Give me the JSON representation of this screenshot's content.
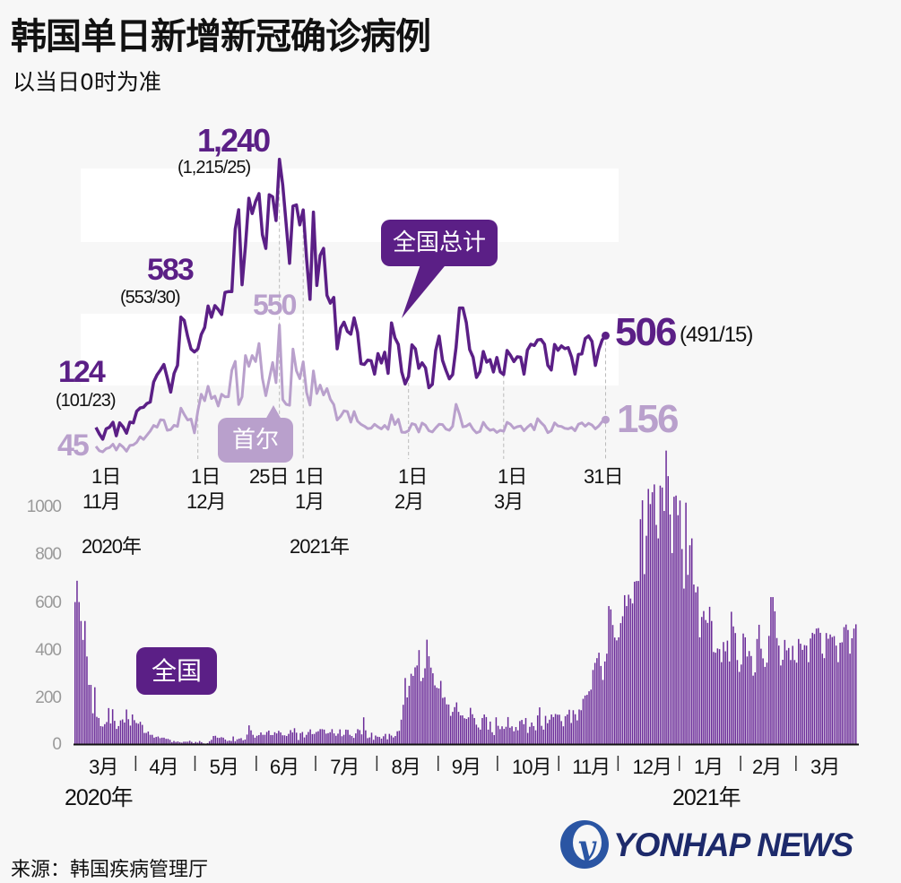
{
  "title": "韩国单日新增新冠确诊病例",
  "subtitle": "以当日0时为准",
  "source": "来源：韩国疾病管理厅",
  "logo_text": "YONHAP NEWS",
  "colors": {
    "national": "#5b1f86",
    "seoul": "#b9a0cc",
    "background": "#f7f7f7"
  },
  "chart_data": [
    {
      "type": "line",
      "x_range": [
        "2020-11-01",
        "2021-03-31"
      ],
      "x_tick_labels": [
        {
          "day": "1日",
          "month": "11月",
          "year": "2020年"
        },
        {
          "day": "1日",
          "month": "12月"
        },
        {
          "day": "25日"
        },
        {
          "day": "1日",
          "month": "1月",
          "year": "2021年"
        },
        {
          "day": "1日",
          "month": "2月"
        },
        {
          "day": "1日",
          "month": "3月"
        },
        {
          "day": "31日"
        }
      ],
      "series": [
        {
          "name": "全国总计",
          "values": [
            124,
            97,
            75,
            118,
            125,
            145,
            89,
            143,
            126,
            100,
            146,
            143,
            191,
            205,
            208,
            223,
            230,
            313,
            343,
            363,
            386,
            330,
            271,
            349,
            382,
            583,
            569,
            503,
            450,
            438,
            451,
            511,
            540,
            629,
            583,
            631,
            615,
            594,
            686,
            689,
            689,
            950,
            1030,
            718,
            880,
            1078,
            1014,
            1064,
            1097,
            926,
            869,
            1092,
            1084,
            985,
            1240,
            1132,
            970,
            807,
            1045,
            1050,
            967,
            1029,
            824,
            657,
            1020,
            715,
            840,
            869,
            674,
            641,
            665,
            451,
            537,
            562,
            524,
            512,
            580,
            520,
            389,
            386,
            404,
            401,
            346,
            431,
            392,
            437,
            349,
            559,
            497,
            469,
            355,
            305,
            336,
            467,
            451,
            370,
            393,
            372,
            289,
            303,
            444,
            504,
            403,
            362,
            326,
            344,
            457,
            621,
            621,
            561,
            448,
            416,
            332,
            356,
            440,
            396,
            406,
            355,
            415,
            355,
            344,
            444,
            424,
            398,
            418,
            416,
            346,
            446,
            470,
            465,
            488,
            490,
            470,
            382,
            363,
            469,
            445,
            463,
            452,
            456,
            416,
            346,
            428,
            430,
            494,
            505,
            482,
            382,
            447,
            488,
            506
          ]
        },
        {
          "name": "首尔",
          "values": [
            45,
            27,
            22,
            36,
            40,
            54,
            30,
            54,
            42,
            25,
            49,
            51,
            62,
            85,
            74,
            91,
            109,
            132,
            125,
            156,
            154,
            112,
            115,
            133,
            128,
            204,
            178,
            155,
            159,
            101,
            193,
            262,
            235,
            295,
            244,
            254,
            213,
            262,
            251,
            252,
            362,
            399,
            219,
            251,
            423,
            378,
            423,
            398,
            473,
            328,
            256,
            325,
            394,
            310,
            550,
            240,
            220,
            216,
            450,
            360,
            327,
            397,
            269,
            217,
            359,
            265,
            300,
            259,
            286,
            241,
            219,
            155,
            170,
            193,
            190,
            146,
            190,
            150,
            137,
            129,
            119,
            121,
            137,
            126,
            118,
            132,
            116,
            176,
            136,
            158,
            104,
            103,
            110,
            140,
            135,
            105,
            142,
            133,
            110,
            105,
            122,
            137,
            136,
            117,
            112,
            129,
            220,
            179,
            126,
            129,
            139,
            116,
            101,
            107,
            145,
            124,
            112,
            116,
            103,
            112,
            108,
            145,
            137,
            120,
            127,
            130,
            110,
            125,
            137,
            114,
            160,
            144,
            130,
            102,
            110,
            143,
            130,
            128,
            120,
            118,
            124,
            110,
            137,
            143,
            129,
            141,
            134,
            118,
            130,
            148,
            156
          ]
        }
      ],
      "annotations": [
        {
          "value": "124",
          "detail": "(101/23)"
        },
        {
          "value": "583",
          "detail": "(553/30)"
        },
        {
          "value": "1,240",
          "detail": "(1,215/25)"
        },
        {
          "value": "506",
          "detail": "(491/15)"
        },
        {
          "seoul_start": "45"
        },
        {
          "seoul_peak": "550"
        },
        {
          "seoul_end": "156"
        }
      ]
    },
    {
      "type": "bar",
      "name": "全国",
      "x_range": [
        "2020-03-01",
        "2021-03-31"
      ],
      "ylim": [
        0,
        1240
      ],
      "y_ticks": [
        "0",
        "200",
        "400",
        "600",
        "800",
        "1000"
      ],
      "month_labels": [
        "3月",
        "4月",
        "5月",
        "6月",
        "7月",
        "8月",
        "9月",
        "10月",
        "11月",
        "12月",
        "1月",
        "2月",
        "3月"
      ],
      "year_labels": [
        "2020年",
        "2021年"
      ],
      "values": [
        600,
        690,
        600,
        520,
        440,
        520,
        370,
        250,
        250,
        130,
        240,
        115,
        110,
        76,
        74,
        84,
        93,
        152,
        87,
        147,
        98,
        64,
        76,
        100,
        104,
        91,
        146,
        105,
        78,
        125,
        101,
        89,
        86,
        94,
        81,
        47,
        47,
        53,
        39,
        39,
        27,
        30,
        32,
        25,
        27,
        27,
        22,
        22,
        18,
        8,
        13,
        9,
        11,
        8,
        6,
        10,
        10,
        10,
        14,
        9,
        4,
        9,
        6,
        13,
        8,
        3,
        2,
        4,
        12,
        18,
        34,
        35,
        27,
        26,
        29,
        27,
        19,
        13,
        15,
        13,
        32,
        12,
        20,
        23,
        25,
        16,
        19,
        40,
        79,
        58,
        39,
        27,
        35,
        38,
        49,
        39,
        39,
        51,
        57,
        38,
        38,
        50,
        45,
        56,
        49,
        37,
        37,
        34,
        43,
        59,
        49,
        67,
        48,
        17,
        46,
        51,
        28,
        39,
        51,
        62,
        42,
        43,
        51,
        54,
        63,
        63,
        61,
        44,
        46,
        50,
        63,
        45,
        35,
        44,
        62,
        33,
        39,
        61,
        60,
        39,
        34,
        26,
        45,
        63,
        59,
        41,
        113,
        58,
        25,
        28,
        48,
        18,
        36,
        31,
        30,
        23,
        33,
        43,
        20,
        43,
        36,
        28,
        34,
        54,
        56,
        103,
        166,
        279,
        197,
        246,
        297,
        288,
        324,
        332,
        397,
        266,
        280,
        320,
        441,
        371,
        323,
        299,
        248,
        238,
        235,
        267,
        195,
        198,
        168,
        167,
        119,
        136,
        156,
        176,
        136,
        121,
        121,
        109,
        106,
        113,
        153,
        126,
        110,
        82,
        70,
        61,
        110,
        125,
        114,
        61,
        95,
        50,
        38,
        113,
        77,
        63,
        75,
        64,
        73,
        114,
        69,
        75,
        54,
        72,
        58,
        97,
        102,
        84,
        110,
        47,
        73,
        91,
        76,
        58,
        121,
        155,
        77,
        61,
        119,
        88,
        103,
        125,
        114,
        127,
        124,
        124,
        97,
        75,
        118,
        125,
        145,
        89,
        143,
        126,
        100,
        146,
        143,
        191,
        205,
        208,
        223,
        230,
        313,
        343,
        363,
        386,
        330,
        271,
        349,
        382,
        583,
        569,
        503,
        450,
        438,
        451,
        511,
        540,
        629,
        583,
        631,
        615,
        594,
        686,
        689,
        689,
        950,
        1030,
        718,
        880,
        1078,
        1014,
        1064,
        1097,
        926,
        869,
        1092,
        1084,
        985,
        1240,
        1132,
        970,
        807,
        1045,
        1050,
        967,
        1029,
        824,
        657,
        1020,
        715,
        840,
        869,
        674,
        641,
        665,
        451,
        537,
        562,
        524,
        512,
        580,
        520,
        389,
        386,
        404,
        401,
        346,
        431,
        392,
        437,
        349,
        559,
        497,
        469,
        355,
        305,
        336,
        467,
        451,
        370,
        393,
        372,
        289,
        303,
        444,
        504,
        403,
        362,
        326,
        344,
        457,
        621,
        621,
        561,
        448,
        416,
        332,
        356,
        440,
        396,
        406,
        355,
        415,
        355,
        344,
        444,
        424,
        398,
        418,
        416,
        346,
        446,
        470,
        465,
        488,
        490,
        470,
        382,
        363,
        469,
        445,
        463,
        452,
        456,
        416,
        346,
        428,
        430,
        494,
        505,
        482,
        382,
        447,
        488,
        506
      ]
    }
  ]
}
